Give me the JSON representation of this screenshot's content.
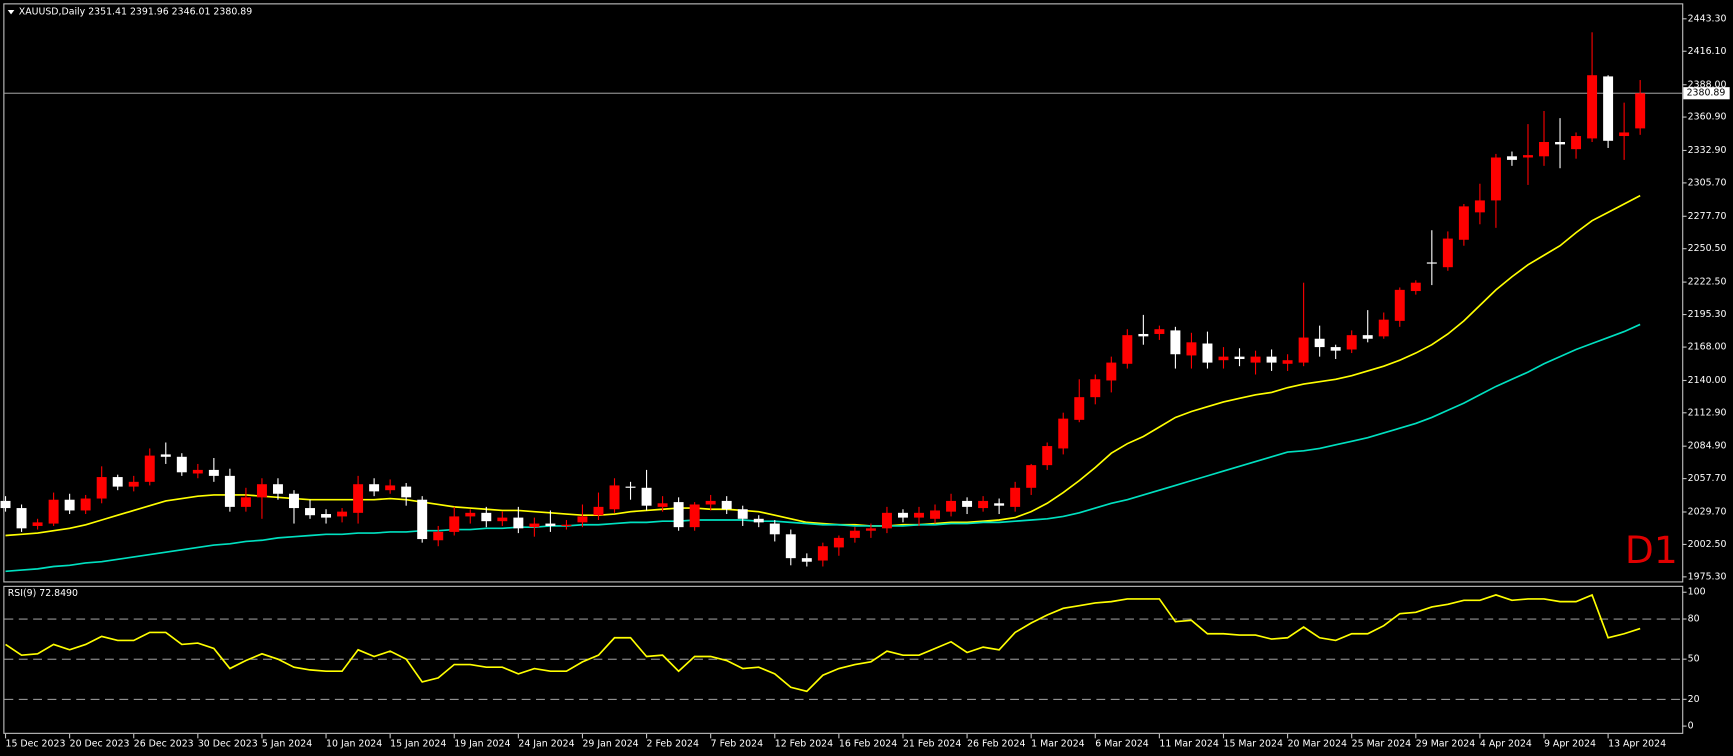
{
  "chart_data": [
    {
      "type": "candlestick",
      "title": "XAUUSD,Daily  2351.41 2391.96 2346.01 2380.89",
      "annotation": "D1",
      "categories": [
        "15 Dec 2023",
        null,
        null,
        null,
        "20 Dec 2023",
        null,
        null,
        null,
        "26 Dec 2023",
        null,
        null,
        null,
        "30 Dec 2023",
        null,
        null,
        null,
        "5 Jan 2024",
        null,
        null,
        null,
        "10 Jan 2024",
        null,
        null,
        null,
        "15 Jan 2024",
        null,
        null,
        null,
        "19 Jan 2024",
        null,
        null,
        null,
        "24 Jan 2024",
        null,
        null,
        null,
        "29 Jan 2024",
        null,
        null,
        null,
        "2 Feb 2024",
        null,
        null,
        null,
        "7 Feb 2024",
        null,
        null,
        null,
        "12 Feb 2024",
        null,
        null,
        null,
        "16 Feb 2024",
        null,
        null,
        null,
        "21 Feb 2024",
        null,
        null,
        null,
        "26 Feb 2024",
        null,
        null,
        null,
        "1 Mar 2024",
        null,
        null,
        null,
        "6 Mar 2024",
        null,
        null,
        null,
        "11 Mar 2024",
        null,
        null,
        null,
        "15 Mar 2024",
        null,
        null,
        null,
        "20 Mar 2024",
        null,
        null,
        null,
        "25 Mar 2024",
        null,
        null,
        null,
        "29 Mar 2024",
        null,
        null,
        null,
        "4 Apr 2024",
        null,
        null,
        null,
        "9 Apr 2024",
        null,
        null,
        null,
        "13 Apr 2024",
        null,
        null
      ],
      "open": [
        2039,
        2033,
        2018,
        2020,
        2040,
        2031,
        2041,
        2059,
        2051,
        2055,
        2078,
        2076,
        2062,
        2065,
        2060,
        2034,
        2042,
        2053,
        2045,
        2033,
        2028,
        2026,
        2029,
        2053,
        2048,
        2051,
        2040,
        2006,
        2013,
        2026,
        2029,
        2022,
        2025,
        2017,
        2020,
        2018,
        2021,
        2027,
        2032,
        2051,
        2050,
        2034,
        2038,
        2017,
        2036,
        2039,
        2032,
        2024,
        2020,
        2011,
        1991,
        1989,
        2000,
        2008,
        2014,
        2016,
        2029,
        2025,
        2024,
        2030,
        2039,
        2033,
        2037,
        2034,
        2050,
        2069,
        2083,
        2107,
        2126,
        2140,
        2154,
        2179,
        2179,
        2182,
        2161,
        2171,
        2157,
        2160,
        2155,
        2160,
        2154,
        2155,
        2175,
        2168,
        2166,
        2178,
        2177,
        2190,
        2215,
        2239,
        2235,
        2258,
        2281,
        2291,
        2328,
        2327,
        2328,
        2340,
        2334,
        2343,
        2395,
        2345,
        2351.41
      ],
      "high": [
        2043,
        2036,
        2024,
        2046,
        2045,
        2044,
        2068,
        2061,
        2060,
        2083,
        2088,
        2079,
        2070,
        2075,
        2066,
        2050,
        2058,
        2058,
        2048,
        2040,
        2032,
        2033,
        2060,
        2058,
        2057,
        2054,
        2043,
        2018,
        2034,
        2032,
        2034,
        2030,
        2034,
        2025,
        2031,
        2023,
        2036,
        2046,
        2058,
        2055,
        2065,
        2043,
        2042,
        2038,
        2044,
        2043,
        2035,
        2027,
        2023,
        2015,
        1995,
        2004,
        2010,
        2017,
        2020,
        2034,
        2032,
        2034,
        2036,
        2045,
        2042,
        2043,
        2041,
        2055,
        2070,
        2088,
        2113,
        2141,
        2145,
        2160,
        2183,
        2195,
        2186,
        2185,
        2180,
        2181,
        2168,
        2167,
        2165,
        2166,
        2162,
        2222,
        2186,
        2170,
        2182,
        2199,
        2197,
        2218,
        2224,
        2266,
        2265,
        2288,
        2305,
        2330,
        2332,
        2355,
        2366,
        2360,
        2348,
        2432,
        2396,
        2373,
        2391.96
      ],
      "low": [
        2030,
        2013,
        2015,
        2018,
        2028,
        2028,
        2037,
        2048,
        2047,
        2052,
        2070,
        2060,
        2058,
        2055,
        2030,
        2030,
        2024,
        2040,
        2020,
        2024,
        2020,
        2021,
        2020,
        2043,
        2045,
        2035,
        2004,
        2001,
        2010,
        2020,
        2017,
        2018,
        2012,
        2009,
        2013,
        2015,
        2017,
        2023,
        2029,
        2040,
        2031,
        2030,
        2014,
        2014,
        2031,
        2028,
        2018,
        2017,
        2005,
        1985,
        1984,
        1984,
        1993,
        2004,
        2008,
        2012,
        2021,
        2018,
        2020,
        2026,
        2028,
        2030,
        2028,
        2030,
        2044,
        2065,
        2078,
        2105,
        2120,
        2130,
        2150,
        2170,
        2174,
        2150,
        2150,
        2150,
        2150,
        2152,
        2145,
        2148,
        2148,
        2152,
        2160,
        2158,
        2163,
        2172,
        2175,
        2185,
        2212,
        2220,
        2232,
        2253,
        2271,
        2268,
        2320,
        2304,
        2320,
        2318,
        2326,
        2340,
        2335,
        2325,
        2346.01
      ],
      "close": [
        2033,
        2016,
        2021,
        2040,
        2031,
        2041,
        2059,
        2051,
        2055,
        2077,
        2076,
        2063,
        2065,
        2060,
        2034,
        2042,
        2053,
        2045,
        2033,
        2027,
        2025,
        2030,
        2053,
        2047,
        2052,
        2042,
        2007,
        2013,
        2026,
        2029,
        2022,
        2025,
        2016,
        2020,
        2018,
        2019,
        2026,
        2034,
        2052,
        2050,
        2035,
        2037,
        2017,
        2036,
        2039,
        2032,
        2024,
        2021,
        2011,
        1991,
        1988,
        2001,
        2008,
        2014,
        2016,
        2029,
        2025,
        2029,
        2031,
        2039,
        2034,
        2039,
        2035,
        2050,
        2069,
        2085,
        2108,
        2126,
        2141,
        2155,
        2178,
        2177,
        2183,
        2162,
        2172,
        2155,
        2160,
        2158,
        2160,
        2155,
        2157,
        2176,
        2168,
        2165,
        2178,
        2175,
        2191,
        2216,
        2222,
        2238,
        2259,
        2286,
        2291,
        2327,
        2325,
        2329,
        2340,
        2338,
        2345,
        2396,
        2341,
        2348,
        2380.89
      ],
      "up_color": "#ff0000",
      "down_color": "#ffffff",
      "overlays": [
        {
          "color": "#ffff00",
          "values": [
            2010,
            2011,
            2012,
            2014,
            2016,
            2019,
            2023,
            2027,
            2031,
            2035,
            2039,
            2041,
            2043,
            2044,
            2044,
            2044,
            2043,
            2042,
            2041,
            2040,
            2040,
            2040,
            2040,
            2040,
            2041,
            2040,
            2038,
            2036,
            2034,
            2033,
            2032,
            2031,
            2031,
            2030,
            2029,
            2028,
            2027,
            2027,
            2028,
            2030,
            2031,
            2032,
            2033,
            2033,
            2032,
            2032,
            2031,
            2030,
            2027,
            2024,
            2021,
            2020,
            2019,
            2019,
            2018,
            2018,
            2019,
            2019,
            2020,
            2021,
            2021,
            2022,
            2023,
            2025,
            2030,
            2037,
            2046,
            2056,
            2067,
            2079,
            2087,
            2093,
            2101,
            2109,
            2114,
            2118,
            2122,
            2125,
            2128,
            2130,
            2134,
            2137,
            2139,
            2141,
            2144,
            2148,
            2152,
            2157,
            2163,
            2170,
            2179,
            2190,
            2203,
            2216,
            2227,
            2237,
            2245,
            2253,
            2264,
            2274,
            2281,
            2288,
            2295
          ]
        },
        {
          "color": "#00e0c0",
          "values": [
            1980,
            1981,
            1982,
            1984,
            1985,
            1987,
            1988,
            1990,
            1992,
            1994,
            1996,
            1998,
            2000,
            2002,
            2003,
            2005,
            2006,
            2008,
            2009,
            2010,
            2011,
            2011,
            2012,
            2012,
            2013,
            2013,
            2014,
            2014,
            2015,
            2015,
            2016,
            2016,
            2017,
            2017,
            2018,
            2018,
            2019,
            2019,
            2020,
            2021,
            2021,
            2022,
            2022,
            2023,
            2023,
            2023,
            2023,
            2022,
            2022,
            2021,
            2020,
            2019,
            2019,
            2018,
            2018,
            2018,
            2018,
            2019,
            2019,
            2020,
            2020,
            2021,
            2021,
            2022,
            2023,
            2024,
            2026,
            2029,
            2033,
            2037,
            2040,
            2044,
            2048,
            2052,
            2056,
            2060,
            2064,
            2068,
            2072,
            2076,
            2080,
            2081,
            2083,
            2086,
            2089,
            2092,
            2096,
            2100,
            2104,
            2109,
            2115,
            2121,
            2128,
            2135,
            2141,
            2147,
            2154,
            2160,
            2166,
            2171,
            2176,
            2181,
            2187
          ]
        }
      ],
      "last_price": 2380.89,
      "ylim": [
        1970.6,
        2456.3
      ],
      "yticks": [
        {
          "value": 1975.3,
          "label": "1975.30"
        },
        {
          "value": 2002.5,
          "label": "2002.50"
        },
        {
          "value": 2029.7,
          "label": "2029.70"
        },
        {
          "value": 2057.7,
          "label": "2057.70"
        },
        {
          "value": 2084.9,
          "label": "2084.90"
        },
        {
          "value": 2112.9,
          "label": "2112.90"
        },
        {
          "value": 2140,
          "label": "2140.00"
        },
        {
          "value": 2168,
          "label": "2168.00"
        },
        {
          "value": 2195.3,
          "label": "2195.30"
        },
        {
          "value": 2222.5,
          "label": "2222.50"
        },
        {
          "value": 2250.5,
          "label": "2250.50"
        },
        {
          "value": 2277.7,
          "label": "2277.70"
        },
        {
          "value": 2305.7,
          "label": "2305.70"
        },
        {
          "value": 2332.9,
          "label": "2332.90"
        },
        {
          "value": 2360.9,
          "label": "2360.90"
        },
        {
          "value": 2388,
          "label": "2388.00"
        },
        {
          "value": 2416.1,
          "label": "2416.10"
        },
        {
          "value": 2443.3,
          "label": "2443.30"
        }
      ]
    },
    {
      "type": "line",
      "title": "RSI(9) 72.8490",
      "color": "#ffff00",
      "values": [
        61,
        53,
        54,
        61,
        57,
        61,
        67,
        64,
        64,
        70,
        70,
        61,
        62,
        58,
        43,
        49,
        54,
        50,
        44,
        42,
        41,
        41,
        57,
        52,
        56,
        50,
        33,
        36,
        46,
        46,
        44,
        44,
        39,
        43,
        41,
        41,
        48,
        53,
        66,
        66,
        52,
        53,
        41,
        52,
        52,
        49,
        43,
        44,
        39,
        29,
        26,
        38,
        43,
        46,
        48,
        56,
        53,
        53,
        58,
        63,
        55,
        59,
        57,
        70,
        77,
        83,
        88,
        90,
        92,
        93,
        95,
        95,
        95,
        78,
        79,
        69,
        69,
        68,
        68,
        65,
        66,
        74,
        66,
        64,
        69,
        69,
        75,
        84,
        85,
        89,
        91,
        94,
        94,
        98,
        94,
        95,
        95,
        93,
        93,
        98,
        66,
        69,
        72.849
      ],
      "levels": [
        20,
        50,
        80
      ],
      "ylim": [
        -5,
        104
      ],
      "yticks": [
        0,
        20,
        50,
        80,
        100
      ]
    }
  ]
}
